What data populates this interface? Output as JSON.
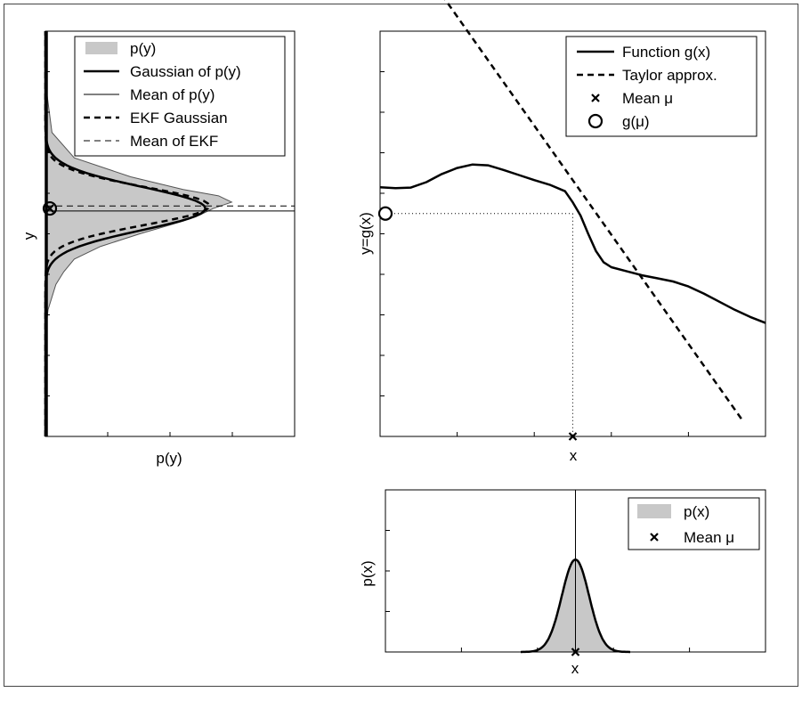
{
  "colors": {
    "fill": "#c8c8c8",
    "line": "#000000"
  },
  "chart_data": [
    {
      "type": "line",
      "id": "py",
      "xlabel": "p(y)",
      "ylabel": "y",
      "grid": false,
      "legend_position": "top-right",
      "legend": [
        "p(y)",
        "Gaussian of p(y)",
        "Mean of p(y)",
        "EKF Gaussian",
        "Mean of EKF"
      ],
      "series": [
        {
          "name": "p(y)",
          "style": "filled-area",
          "y": [
            -1.0,
            -0.8,
            -0.6,
            -0.5,
            -0.4,
            -0.3,
            -0.2,
            -0.1,
            -0.05,
            0.0,
            0.05,
            0.1,
            0.15,
            0.25,
            0.4,
            0.6,
            1.0
          ],
          "values": [
            0.0,
            0.02,
            0.08,
            0.14,
            0.22,
            0.42,
            0.72,
            1.05,
            1.18,
            1.28,
            1.42,
            1.32,
            1.05,
            0.65,
            0.22,
            0.05,
            0.0
          ]
        },
        {
          "name": "Gaussian of p(y)",
          "mean": 0.0,
          "sd": 0.17,
          "peak": 1.22
        },
        {
          "name": "Mean of p(y)",
          "value": -0.02
        },
        {
          "name": "EKF Gaussian",
          "mean": 0.02,
          "sd": 0.15,
          "peak": 1.25
        },
        {
          "name": "Mean of EKF",
          "value": 0.02
        }
      ],
      "marker_g_mu": {
        "x": 0.0,
        "y": 0.0
      },
      "xlim": [
        0,
        1.9
      ],
      "ylim": [
        -1.8,
        1.4
      ]
    },
    {
      "type": "line",
      "id": "gx",
      "xlabel": "x",
      "ylabel": "y=g(x)",
      "grid": false,
      "legend_position": "top-right",
      "legend": [
        "Function g(x)",
        "Taylor approx.",
        "Mean μ",
        "g(μ)"
      ],
      "series": [
        {
          "name": "Function g(x)",
          "x": [
            -5,
            -4.6,
            -4.2,
            -3.8,
            -3.4,
            -3.0,
            -2.6,
            -2.2,
            -1.8,
            -1.4,
            -1.0,
            -0.6,
            -0.2,
            0.0,
            0.2,
            0.4,
            0.6,
            0.8,
            1.0,
            1.4,
            1.8,
            2.2,
            2.6,
            3.0,
            3.4,
            3.8,
            4.2,
            4.6,
            5.0
          ],
          "y": [
            1.3,
            1.25,
            1.28,
            1.55,
            1.95,
            2.25,
            2.42,
            2.38,
            2.15,
            1.9,
            1.65,
            1.42,
            1.1,
            0.55,
            -0.1,
            -1.0,
            -1.85,
            -2.4,
            -2.65,
            -2.85,
            -3.05,
            -3.2,
            -3.35,
            -3.6,
            -3.95,
            -4.35,
            -4.75,
            -5.1,
            -5.4
          ]
        },
        {
          "name": "Taylor approx.",
          "x": [
            -3.4,
            4.4
          ],
          "y": [
            10.8,
            -10.2
          ]
        },
        {
          "name": "Mean μ",
          "x": [
            0.0
          ],
          "y": [
            -11.0
          ]
        },
        {
          "name": "g(μ)",
          "x": [
            -5.0
          ],
          "y": [
            0.0
          ]
        }
      ],
      "xlim": [
        -5,
        5
      ],
      "ylim": [
        -11,
        9
      ]
    },
    {
      "type": "area",
      "id": "px",
      "xlabel": "x",
      "ylabel": "p(x)",
      "grid": false,
      "legend_position": "top-right",
      "legend": [
        "p(x)",
        "Mean μ"
      ],
      "series": [
        {
          "name": "p(x)",
          "mean": 0.0,
          "sd": 0.36,
          "peak": 0.57
        },
        {
          "name": "Mean μ",
          "x": [
            0.0
          ],
          "y": [
            0.0
          ]
        }
      ],
      "xlim": [
        -5,
        5
      ],
      "ylim": [
        0,
        1
      ]
    }
  ]
}
